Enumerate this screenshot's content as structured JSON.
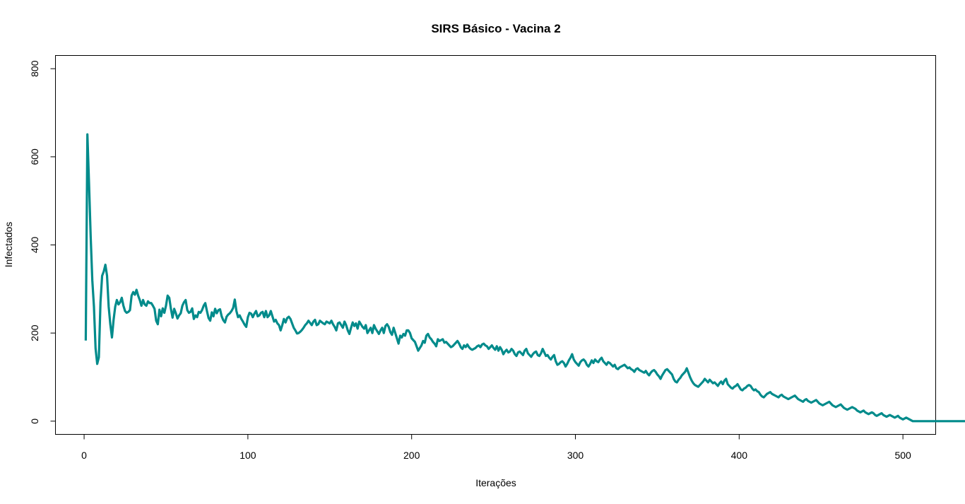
{
  "chart_data": {
    "type": "line",
    "title": "SIRS Básico - Vacina 2",
    "xlabel": "Iterações",
    "ylabel": "Infectados",
    "xlim": [
      -17.5,
      520
    ],
    "ylim": [
      -30,
      830
    ],
    "x_ticks": [
      "0",
      "100",
      "200",
      "300",
      "400",
      "500"
    ],
    "y_ticks": [
      "0",
      "200",
      "400",
      "600",
      "800"
    ],
    "grid": false,
    "legend": "none",
    "series_color": "#008B8B",
    "x_start": 1,
    "values": [
      183,
      651,
      540,
      420,
      320,
      260,
      165,
      130,
      145,
      270,
      330,
      340,
      355,
      330,
      260,
      220,
      190,
      230,
      260,
      275,
      265,
      270,
      280,
      262,
      250,
      246,
      248,
      252,
      285,
      293,
      287,
      298,
      285,
      275,
      262,
      275,
      265,
      262,
      272,
      268,
      268,
      262,
      255,
      228,
      220,
      253,
      238,
      256,
      246,
      262,
      285,
      280,
      255,
      235,
      255,
      245,
      233,
      240,
      245,
      262,
      270,
      275,
      252,
      246,
      248,
      256,
      232,
      240,
      236,
      248,
      246,
      252,
      262,
      268,
      250,
      234,
      228,
      247,
      238,
      255,
      245,
      252,
      254,
      238,
      229,
      224,
      237,
      242,
      245,
      250,
      257,
      276,
      250,
      236,
      240,
      232,
      226,
      219,
      214,
      236,
      246,
      244,
      236,
      244,
      250,
      238,
      240,
      246,
      248,
      236,
      250,
      236,
      240,
      250,
      238,
      226,
      230,
      222,
      218,
      206,
      218,
      232,
      224,
      234,
      237,
      232,
      222,
      212,
      206,
      199,
      200,
      203,
      207,
      212,
      218,
      222,
      228,
      223,
      218,
      226,
      230,
      218,
      220,
      228,
      225,
      222,
      220,
      226,
      224,
      222,
      228,
      220,
      214,
      206,
      222,
      224,
      218,
      212,
      226,
      218,
      206,
      198,
      212,
      224,
      216,
      222,
      210,
      226,
      220,
      214,
      210,
      218,
      200,
      206,
      212,
      200,
      218,
      210,
      204,
      198,
      206,
      212,
      200,
      216,
      220,
      214,
      202,
      196,
      212,
      200,
      188,
      176,
      194,
      190,
      198,
      194,
      206,
      206,
      200,
      188,
      184,
      180,
      170,
      160,
      166,
      172,
      182,
      178,
      194,
      198,
      190,
      186,
      180,
      176,
      170,
      186,
      182,
      184,
      186,
      178,
      180,
      176,
      172,
      168,
      170,
      174,
      178,
      182,
      176,
      168,
      164,
      172,
      168,
      174,
      168,
      164,
      162,
      164,
      166,
      170,
      172,
      168,
      174,
      176,
      172,
      170,
      164,
      168,
      172,
      166,
      162,
      170,
      160,
      168,
      162,
      152,
      158,
      162,
      156,
      158,
      164,
      160,
      152,
      148,
      156,
      158,
      154,
      150,
      160,
      164,
      154,
      150,
      146,
      152,
      156,
      158,
      150,
      148,
      154,
      164,
      156,
      148,
      150,
      144,
      140,
      146,
      150,
      136,
      128,
      130,
      134,
      136,
      132,
      124,
      130,
      138,
      144,
      152,
      140,
      134,
      130,
      126,
      134,
      138,
      140,
      136,
      128,
      124,
      130,
      138,
      132,
      140,
      136,
      134,
      140,
      144,
      136,
      132,
      128,
      134,
      132,
      128,
      124,
      128,
      120,
      118,
      122,
      124,
      126,
      128,
      124,
      120,
      122,
      118,
      116,
      112,
      118,
      120,
      116,
      114,
      112,
      110,
      114,
      108,
      104,
      110,
      114,
      116,
      112,
      106,
      102,
      96,
      104,
      110,
      116,
      118,
      114,
      110,
      106,
      96,
      90,
      88,
      94,
      98,
      104,
      108,
      112,
      120,
      110,
      100,
      92,
      86,
      82,
      80,
      78,
      82,
      86,
      90,
      96,
      92,
      88,
      94,
      90,
      86,
      88,
      84,
      80,
      86,
      90,
      84,
      92,
      96,
      84,
      80,
      76,
      74,
      78,
      80,
      84,
      78,
      72,
      70,
      74,
      76,
      80,
      82,
      80,
      74,
      70,
      72,
      68,
      66,
      60,
      56,
      54,
      58,
      62,
      64,
      66,
      62,
      60,
      58,
      56,
      54,
      58,
      60,
      56,
      54,
      52,
      50,
      52,
      54,
      56,
      58,
      54,
      50,
      48,
      46,
      44,
      48,
      50,
      46,
      44,
      42,
      44,
      46,
      48,
      44,
      40,
      38,
      36,
      38,
      40,
      42,
      44,
      40,
      36,
      34,
      32,
      34,
      36,
      38,
      34,
      30,
      28,
      26,
      28,
      30,
      32,
      30,
      28,
      24,
      22,
      20,
      22,
      24,
      20,
      18,
      16,
      18,
      20,
      18,
      14,
      12,
      14,
      16,
      18,
      14,
      12,
      10,
      12,
      14,
      12,
      10,
      8,
      10,
      12,
      8,
      6,
      4,
      6,
      8,
      6,
      4,
      2,
      0,
      0,
      0,
      0,
      0,
      0,
      0,
      0,
      0,
      0,
      0,
      0,
      0,
      0,
      0,
      0,
      0,
      0,
      0,
      0,
      0,
      0,
      0,
      0,
      0,
      0,
      0,
      0,
      0,
      0,
      0,
      0,
      0,
      0,
      0,
      0,
      0,
      0,
      0,
      0,
      0,
      0,
      0,
      0,
      0,
      0,
      0
    ]
  }
}
